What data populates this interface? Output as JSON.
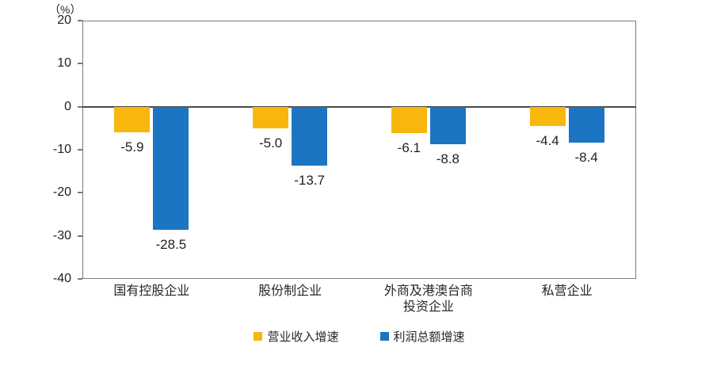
{
  "chart_data": {
    "type": "bar",
    "title": "",
    "unit_label": "（%）",
    "categories": [
      "国有控股企业",
      "股份制企业",
      "外商及港澳台商\n投资企业",
      "私营企业"
    ],
    "series": [
      {
        "name": "营业收入增速",
        "color": "#F8B70D",
        "values": [
          -5.9,
          -5.0,
          -6.1,
          -4.4
        ]
      },
      {
        "name": "利润总额增速",
        "color": "#1B75C2",
        "values": [
          -28.5,
          -13.7,
          -8.8,
          -8.4
        ]
      }
    ],
    "value_labels": [
      [
        "-5.9",
        "-5.0",
        "-6.1",
        "-4.4"
      ],
      [
        "-28.5",
        "-13.7",
        "-8.8",
        "-8.4"
      ]
    ],
    "ylim": [
      -40,
      20
    ],
    "yticks": [
      20,
      10,
      0,
      -10,
      -20,
      -30,
      -40
    ],
    "grid": false,
    "legend_position": "bottom",
    "colors": {
      "frame": "#7a7a7a",
      "zero_line": "#4a4a4a",
      "text": "#1f1f1f",
      "background": "#ffffff"
    }
  }
}
